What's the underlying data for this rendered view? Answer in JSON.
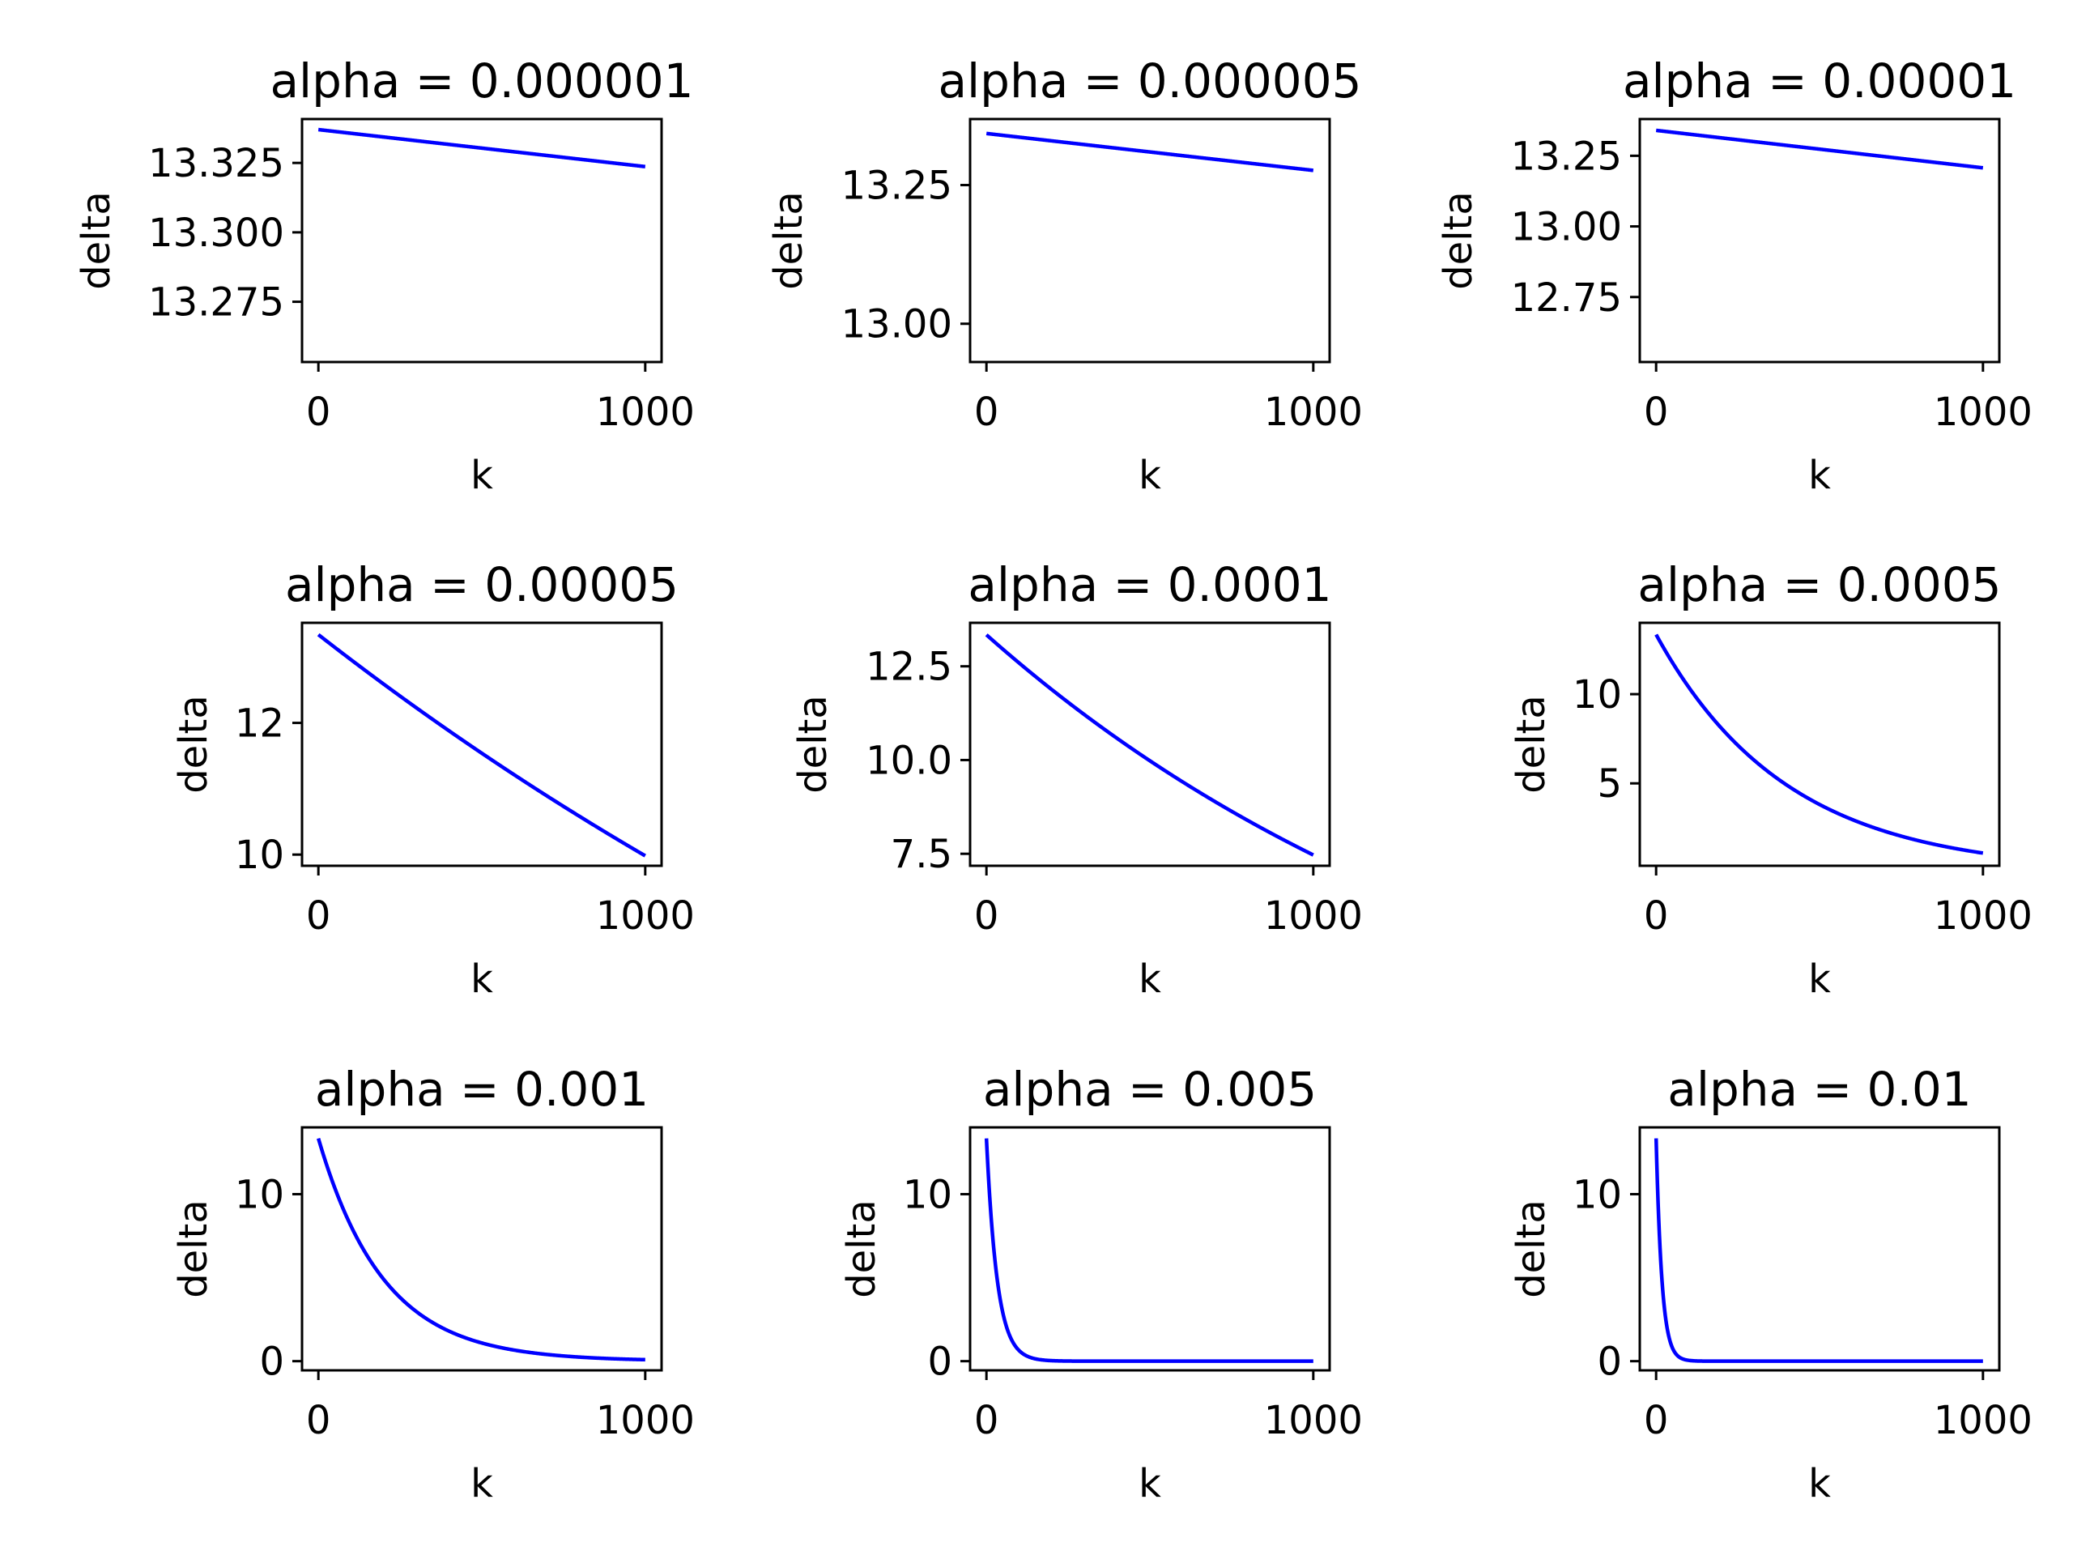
{
  "chart_data": [
    {
      "type": "line",
      "title": "alpha = 0.000001",
      "xlabel": "k",
      "ylabel": "delta",
      "x_range": [
        0,
        1000
      ],
      "xlim": [
        -50,
        1050
      ],
      "xticks": [
        0,
        1000
      ],
      "xtick_labels": [
        "0",
        "1000"
      ],
      "ylim": [
        13.2533,
        13.3408
      ],
      "yticks": [
        13.275,
        13.3,
        13.325
      ],
      "ytick_labels": [
        "13.275",
        "13.300",
        "13.325"
      ],
      "series": [
        {
          "model": "exponential_decay",
          "color": "#0000ff",
          "y0": 13.337,
          "rate": 1e-06
        }
      ],
      "grid": false
    },
    {
      "type": "line",
      "title": "alpha = 0.000005",
      "xlabel": "k",
      "ylabel": "delta",
      "x_range": [
        0,
        1000
      ],
      "xlim": [
        -50,
        1050
      ],
      "xticks": [
        0,
        1000
      ],
      "xtick_labels": [
        "0",
        "1000"
      ],
      "ylim": [
        12.931,
        13.369
      ],
      "yticks": [
        13.0,
        13.25
      ],
      "ytick_labels": [
        "13.00",
        "13.25"
      ],
      "series": [
        {
          "model": "exponential_decay",
          "color": "#0000ff",
          "y0": 13.343,
          "rate": 5e-06
        }
      ],
      "grid": false
    },
    {
      "type": "line",
      "title": "alpha = 0.00001",
      "xlabel": "k",
      "ylabel": "delta",
      "x_range": [
        0,
        1000
      ],
      "xlim": [
        -50,
        1050
      ],
      "xticks": [
        0,
        1000
      ],
      "xtick_labels": [
        "0",
        "1000"
      ],
      "ylim": [
        12.52,
        13.38
      ],
      "yticks": [
        12.75,
        13.0,
        13.25
      ],
      "ytick_labels": [
        "12.75",
        "13.00",
        "13.25"
      ],
      "series": [
        {
          "model": "exponential_decay",
          "color": "#0000ff",
          "y0": 13.34,
          "rate": 1e-05
        }
      ],
      "grid": false
    },
    {
      "type": "line",
      "title": "alpha = 0.00005",
      "xlabel": "k",
      "ylabel": "delta",
      "x_range": [
        0,
        1000
      ],
      "xlim": [
        -50,
        1050
      ],
      "xticks": [
        0,
        1000
      ],
      "xtick_labels": [
        "0",
        "1000"
      ],
      "ylim": [
        9.83,
        13.52
      ],
      "yticks": [
        10,
        12
      ],
      "ytick_labels": [
        "10",
        "12"
      ],
      "series": [
        {
          "model": "exponential_decay",
          "color": "#0000ff",
          "y0": 13.34,
          "rate": 0.00029
        }
      ],
      "grid": false
    },
    {
      "type": "line",
      "title": "alpha = 0.0001",
      "xlabel": "k",
      "ylabel": "delta",
      "x_range": [
        0,
        1000
      ],
      "xlim": [
        -50,
        1050
      ],
      "xticks": [
        0,
        1000
      ],
      "xtick_labels": [
        "0",
        "1000"
      ],
      "ylim": [
        7.18,
        13.66
      ],
      "yticks": [
        7.5,
        10.0,
        12.5
      ],
      "ytick_labels": [
        "7.5",
        "10.0",
        "12.5"
      ],
      "series": [
        {
          "model": "exponential_decay",
          "color": "#0000ff",
          "y0": 13.34,
          "rate": 0.00058
        }
      ],
      "grid": false
    },
    {
      "type": "line",
      "title": "alpha = 0.0005",
      "xlabel": "k",
      "ylabel": "delta",
      "x_range": [
        0,
        1000
      ],
      "xlim": [
        -50,
        1050
      ],
      "xticks": [
        0,
        1000
      ],
      "xtick_labels": [
        "0",
        "1000"
      ],
      "ylim": [
        0.38,
        14.0
      ],
      "yticks": [
        5,
        10
      ],
      "ytick_labels": [
        "5",
        "10"
      ],
      "series": [
        {
          "model": "exponential_decay",
          "color": "#0000ff",
          "y0": 13.34,
          "rate": 0.0025
        }
      ],
      "grid": false
    },
    {
      "type": "line",
      "title": "alpha = 0.001",
      "xlabel": "k",
      "ylabel": "delta",
      "x_range": [
        0,
        1000
      ],
      "xlim": [
        -50,
        1050
      ],
      "xticks": [
        0,
        1000
      ],
      "xtick_labels": [
        "0",
        "1000"
      ],
      "ylim": [
        -0.55,
        14.0
      ],
      "yticks": [
        0,
        10
      ],
      "ytick_labels": [
        "0",
        "10"
      ],
      "series": [
        {
          "model": "exponential_decay",
          "color": "#0000ff",
          "y0": 13.34,
          "rate": 0.005
        }
      ],
      "grid": false
    },
    {
      "type": "line",
      "title": "alpha = 0.005",
      "xlabel": "k",
      "ylabel": "delta",
      "x_range": [
        0,
        1000
      ],
      "xlim": [
        -50,
        1050
      ],
      "xticks": [
        0,
        1000
      ],
      "xtick_labels": [
        "0",
        "1000"
      ],
      "ylim": [
        -0.55,
        14.0
      ],
      "yticks": [
        0,
        10
      ],
      "ytick_labels": [
        "0",
        "10"
      ],
      "series": [
        {
          "model": "exponential_decay",
          "color": "#0000ff",
          "y0": 13.34,
          "rate": 0.03
        }
      ],
      "grid": false
    },
    {
      "type": "line",
      "title": "alpha = 0.01",
      "xlabel": "k",
      "ylabel": "delta",
      "x_range": [
        0,
        1000
      ],
      "xlim": [
        -50,
        1050
      ],
      "xticks": [
        0,
        1000
      ],
      "xtick_labels": [
        "0",
        "1000"
      ],
      "ylim": [
        -0.55,
        14.0
      ],
      "yticks": [
        0,
        10
      ],
      "ytick_labels": [
        "0",
        "10"
      ],
      "series": [
        {
          "model": "exponential_decay",
          "color": "#0000ff",
          "y0": 13.34,
          "rate": 0.055
        }
      ],
      "grid": false
    }
  ]
}
